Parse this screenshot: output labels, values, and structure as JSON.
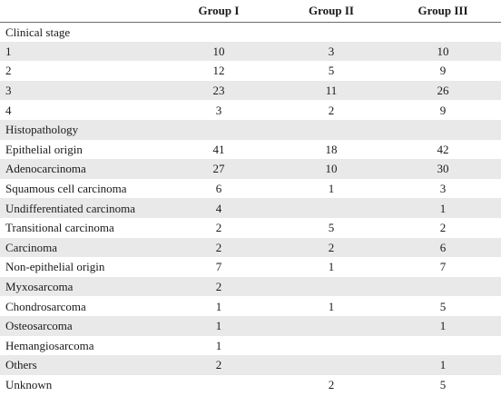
{
  "headers": [
    "",
    "Group I",
    "Group II",
    "Group III"
  ],
  "rows": [
    {
      "label": "Clinical stage",
      "g1": "",
      "g2": "",
      "g3": ""
    },
    {
      "label": "1",
      "g1": "10",
      "g2": "3",
      "g3": "10"
    },
    {
      "label": "2",
      "g1": "12",
      "g2": "5",
      "g3": "9"
    },
    {
      "label": "3",
      "g1": "23",
      "g2": "11",
      "g3": "26"
    },
    {
      "label": "4",
      "g1": "3",
      "g2": "2",
      "g3": "9"
    },
    {
      "label": "Histopathology",
      "g1": "",
      "g2": "",
      "g3": ""
    },
    {
      "label": "Epithelial origin",
      "g1": "41",
      "g2": "18",
      "g3": "42"
    },
    {
      "label": "Adenocarcinoma",
      "g1": "27",
      "g2": "10",
      "g3": "30"
    },
    {
      "label": "Squamous cell carcinoma",
      "g1": "6",
      "g2": "1",
      "g3": "3"
    },
    {
      "label": "Undifferentiated carcinoma",
      "g1": "4",
      "g2": "",
      "g3": "1"
    },
    {
      "label": "Transitional carcinoma",
      "g1": "2",
      "g2": "5",
      "g3": "2"
    },
    {
      "label": "Carcinoma",
      "g1": "2",
      "g2": "2",
      "g3": "6"
    },
    {
      "label": "Non-epithelial origin",
      "g1": "7",
      "g2": "1",
      "g3": "7"
    },
    {
      "label": "Myxosarcoma",
      "g1": "2",
      "g2": "",
      "g3": ""
    },
    {
      "label": "Chondrosarcoma",
      "g1": "1",
      "g2": "1",
      "g3": "5"
    },
    {
      "label": "Osteosarcoma",
      "g1": "1",
      "g2": "",
      "g3": "1"
    },
    {
      "label": "Hemangiosarcoma",
      "g1": "1",
      "g2": "",
      "g3": ""
    },
    {
      "label": "Others",
      "g1": "2",
      "g2": "",
      "g3": "1"
    },
    {
      "label": "Unknown",
      "g1": "",
      "g2": "2",
      "g3": "5"
    }
  ]
}
